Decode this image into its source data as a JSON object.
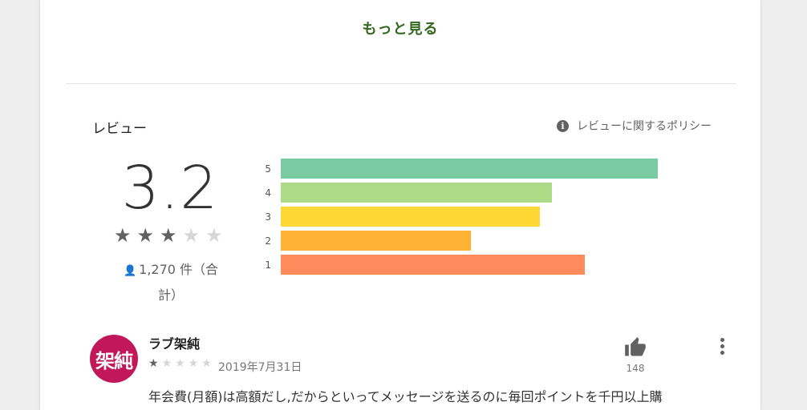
{
  "more_button": "もっと見る",
  "reviews_section": {
    "title": "レビュー",
    "policy_link": "レビューに関するポリシー",
    "policy_icon": "info-icon"
  },
  "rating": {
    "score": "3.2",
    "stars_filled": 3,
    "stars_total": 5,
    "count_text": "1,270 件（合計）",
    "count_icon": "person-icon"
  },
  "histogram": [
    {
      "label": "5",
      "value": 0.93,
      "color": "#7bcba2"
    },
    {
      "label": "4",
      "value": 0.67,
      "color": "#addb87"
    },
    {
      "label": "3",
      "value": 0.64,
      "color": "#fdd835"
    },
    {
      "label": "2",
      "value": 0.47,
      "color": "#ffb235"
    },
    {
      "label": "1",
      "value": 0.75,
      "color": "#ff8a5b"
    }
  ],
  "review": {
    "avatar_text": "架純",
    "name": "ラブ架純",
    "stars_filled": 1,
    "stars_total": 5,
    "date": "2019年7月31日",
    "likes": "148",
    "like_icon": "thumbs-up-icon",
    "menu_icon": "more-vert-icon",
    "text": "年会費(月額)は高額だし,だからといってメッセージを送るのに毎回ポイントを千円以上購"
  },
  "colors": {
    "accent_green": "#33691e",
    "star_filled": "#616161",
    "star_empty": "#d6d6d6",
    "avatar_bg": "#c2185b"
  }
}
